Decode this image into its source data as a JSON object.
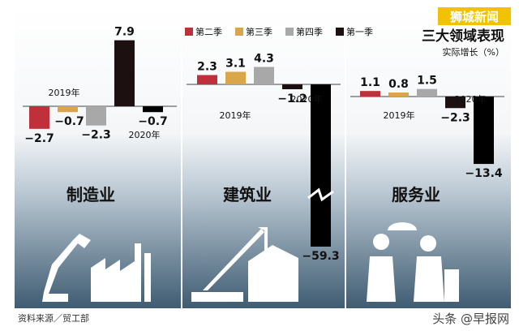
{
  "header": {
    "title": "三大领域表现",
    "unit": "实际增长（%）",
    "brand": "狮城新闻"
  },
  "legend": [
    {
      "name": "第二季",
      "color": "#c0303a"
    },
    {
      "name": "第三季",
      "color": "#d9a74a"
    },
    {
      "name": "第四季",
      "color": "#a8a8a8"
    },
    {
      "name": "第一季",
      "color": "#1c1010"
    }
  ],
  "chart_data": [
    {
      "type": "bar",
      "title": "制造业",
      "year_labels": [
        "2019年",
        "2020年"
      ],
      "categories": [
        "2019年第二季",
        "2019年第三季",
        "2019年第四季",
        "2020年第一季",
        "2020年第二季"
      ],
      "values": [
        -2.7,
        -0.7,
        -2.3,
        7.9,
        -0.7
      ]
    },
    {
      "type": "bar",
      "title": "建筑业",
      "year_labels": [
        "2019年",
        "2020年"
      ],
      "categories": [
        "2019年第二季",
        "2019年第三季",
        "2019年第四季",
        "2020年第一季",
        "2020年第二季"
      ],
      "values": [
        2.3,
        3.1,
        4.3,
        -1.2,
        -59.3
      ],
      "broken_axis": true
    },
    {
      "type": "bar",
      "title": "服务业",
      "year_labels": [
        "2019年",
        "2020年"
      ],
      "categories": [
        "2019年第二季",
        "2019年第三季",
        "2019年第四季",
        "2020年第一季",
        "2020年第二季"
      ],
      "values": [
        1.1,
        0.8,
        1.5,
        -2.3,
        -13.4
      ]
    }
  ],
  "footer": {
    "source": "资料来源／贸工部",
    "watermark": "头条 @早报网"
  }
}
